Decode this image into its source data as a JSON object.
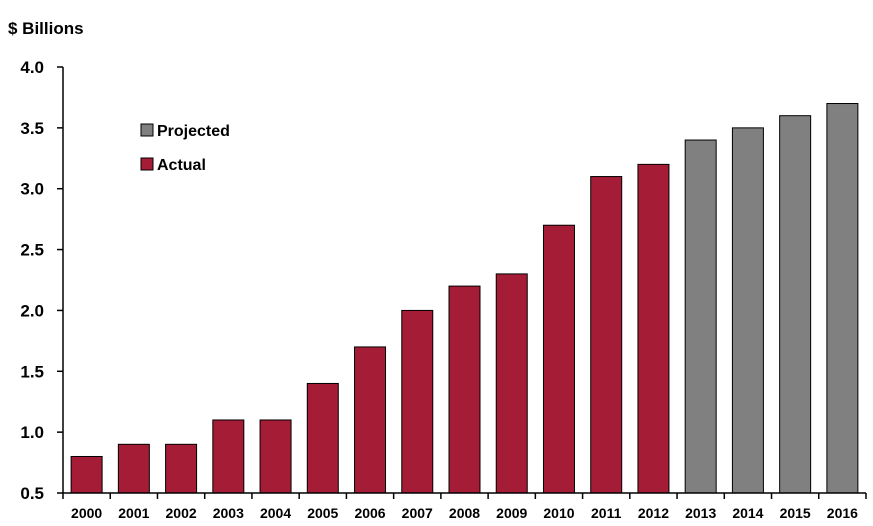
{
  "chart_data": {
    "type": "bar",
    "ylabel": "$ Billions",
    "xlabel": "",
    "title": "",
    "ylim": [
      0.5,
      4.0
    ],
    "yticks": [
      "0.5",
      "1.0",
      "1.5",
      "2.0",
      "2.5",
      "3.0",
      "3.5",
      "4.0"
    ],
    "categories": [
      "2000",
      "2001",
      "2002",
      "2003",
      "2004",
      "2005",
      "2006",
      "2007",
      "2008",
      "2009",
      "2010",
      "2011",
      "2012",
      "2013",
      "2014",
      "2015",
      "2016"
    ],
    "values": [
      0.8,
      0.9,
      0.9,
      1.1,
      1.1,
      1.4,
      1.7,
      2.0,
      2.2,
      2.3,
      2.7,
      3.1,
      3.2,
      3.4,
      3.5,
      3.6,
      3.7
    ],
    "bar_status": [
      "Actual",
      "Actual",
      "Actual",
      "Actual",
      "Actual",
      "Actual",
      "Actual",
      "Actual",
      "Actual",
      "Actual",
      "Actual",
      "Actual",
      "Actual",
      "Projected",
      "Projected",
      "Projected",
      "Projected"
    ],
    "legend": [
      {
        "name": "Projected",
        "color": "#808080"
      },
      {
        "name": "Actual",
        "color": "#A51C36"
      }
    ],
    "legend_position": "top-left",
    "grid": false
  }
}
